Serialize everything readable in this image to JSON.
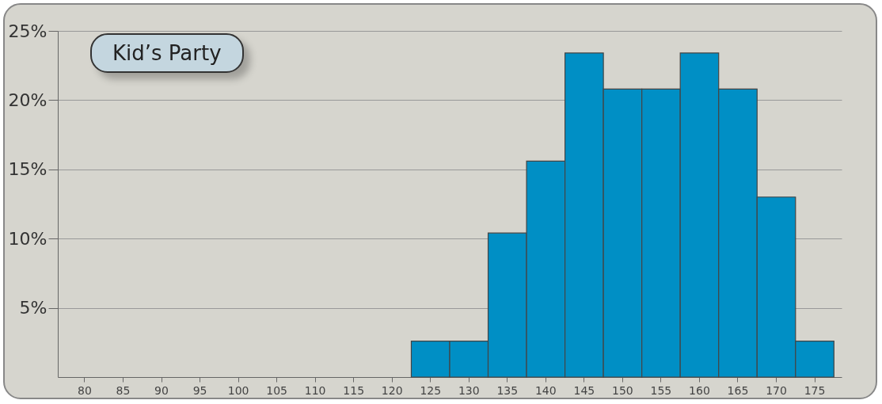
{
  "chart_data": {
    "type": "bar",
    "title": "Kid’s Party",
    "categories": [
      "80",
      "85",
      "90",
      "95",
      "100",
      "105",
      "110",
      "115",
      "120",
      "125",
      "130",
      "135",
      "140",
      "145",
      "150",
      "155",
      "160",
      "165",
      "170",
      "175"
    ],
    "values": [
      0,
      0,
      0,
      0,
      0,
      0,
      0,
      0,
      0,
      2.6,
      2.6,
      10.4,
      15.6,
      23.4,
      20.8,
      20.8,
      23.4,
      20.8,
      13.0,
      2.6
    ],
    "color": "#008fc5",
    "ylim": [
      0,
      25
    ],
    "yticks": [
      {
        "value": 5,
        "label": "5%"
      },
      {
        "value": 10,
        "label": "10%"
      },
      {
        "value": 15,
        "label": "15%"
      },
      {
        "value": 20,
        "label": "20%"
      },
      {
        "value": 25,
        "label": "25%"
      }
    ],
    "grid": "y"
  }
}
